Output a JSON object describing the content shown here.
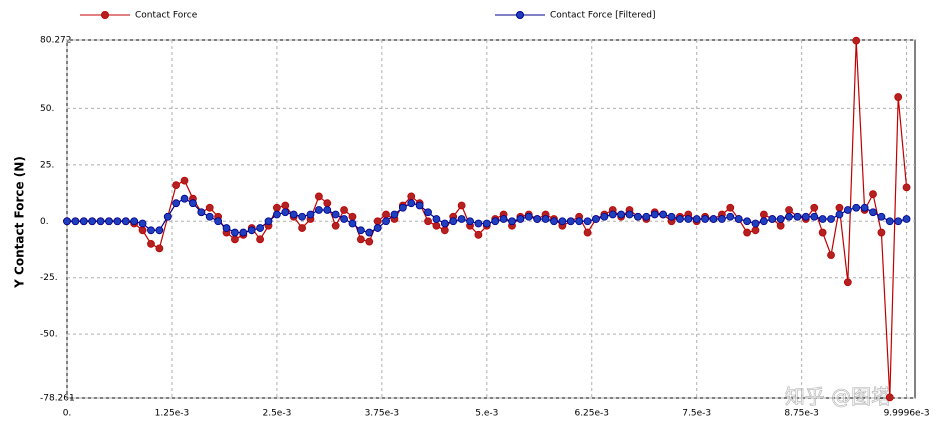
{
  "chart_data": {
    "type": "line",
    "y_label": "Y Contact Force (N)",
    "watermark": "知乎 @图塔",
    "legend": "top",
    "grid": true,
    "x": [
      0,
      0.0001,
      0.0002,
      0.0003,
      0.0004,
      0.0005,
      0.0006,
      0.0007,
      0.0008,
      0.0009,
      0.001,
      0.0011,
      0.0012,
      0.0013,
      0.0014,
      0.0015,
      0.0016,
      0.0017,
      0.0018,
      0.0019,
      0.002,
      0.0021,
      0.0022,
      0.0023,
      0.0024,
      0.0025,
      0.0026,
      0.0027,
      0.0028,
      0.0029,
      0.003,
      0.0031,
      0.0032,
      0.0033,
      0.0034,
      0.0035,
      0.0036,
      0.0037,
      0.0038,
      0.0039,
      0.004,
      0.0041,
      0.0042,
      0.0043,
      0.0044,
      0.0045,
      0.0046,
      0.0047,
      0.0048,
      0.0049,
      0.005,
      0.0051,
      0.0052,
      0.0053,
      0.0054,
      0.0055,
      0.0056,
      0.0057,
      0.0058,
      0.0059,
      0.006,
      0.0061,
      0.0062,
      0.0063,
      0.0064,
      0.0065,
      0.0066,
      0.0067,
      0.0068,
      0.0069,
      0.007,
      0.0071,
      0.0072,
      0.0073,
      0.0074,
      0.0075,
      0.0076,
      0.0077,
      0.0078,
      0.0079,
      0.008,
      0.0081,
      0.0082,
      0.0083,
      0.0084,
      0.0085,
      0.0086,
      0.0087,
      0.0088,
      0.0089,
      0.009,
      0.0091,
      0.0092,
      0.0093,
      0.0094,
      0.0095,
      0.0096,
      0.0097,
      0.0098,
      0.0099,
      0.0099996
    ],
    "series": [
      {
        "name": "Contact Force",
        "color": "#c00000",
        "marker_fill": "#b22222",
        "values": [
          0,
          0,
          0,
          0,
          0,
          0,
          0,
          0,
          -1,
          -4,
          -10,
          -12,
          2,
          16,
          18,
          10,
          4,
          6,
          2,
          -5,
          -8,
          -6,
          -3,
          -8,
          -2,
          6,
          7,
          2,
          -3,
          1,
          11,
          8,
          -2,
          5,
          2,
          -8,
          -9,
          0,
          3,
          1,
          7,
          11,
          8,
          0,
          -2,
          -4,
          2,
          7,
          -2,
          -6,
          -2,
          1,
          3,
          -2,
          2,
          3,
          1,
          3,
          1,
          -2,
          0,
          2,
          -5,
          1,
          3,
          5,
          2,
          5,
          2,
          1,
          4,
          3,
          0,
          2,
          3,
          0,
          2,
          1,
          3,
          6,
          1,
          -5,
          -4,
          3,
          1,
          -2,
          5,
          2,
          1,
          6,
          -5,
          -15,
          6,
          -27,
          80,
          5,
          12,
          -5,
          -78,
          55,
          15
        ]
      },
      {
        "name": "Contact Force [Filtered]",
        "color": "#00008b",
        "marker_fill": "#1f3fbf",
        "values": [
          0,
          0,
          0,
          0,
          0,
          0,
          0,
          0,
          0,
          -1,
          -4,
          -4,
          2,
          8,
          10,
          8,
          4,
          2,
          0,
          -3,
          -5,
          -5,
          -4,
          -3,
          0,
          3,
          4,
          3,
          2,
          3,
          5,
          5,
          3,
          1,
          -1,
          -4,
          -5,
          -3,
          0,
          3,
          6,
          8,
          7,
          4,
          1,
          -1,
          0,
          1,
          0,
          -1,
          -1,
          0,
          1,
          0,
          1,
          2,
          1,
          1,
          0,
          0,
          0,
          0,
          0,
          1,
          2,
          3,
          3,
          3,
          2,
          2,
          3,
          3,
          2,
          1,
          1,
          1,
          1,
          1,
          1,
          2,
          1,
          0,
          -1,
          0,
          1,
          1,
          2,
          2,
          2,
          2,
          1,
          1,
          3,
          5,
          6,
          6,
          4,
          2,
          0,
          0,
          1
        ]
      }
    ],
    "xlim": [
      0,
      0.0101
    ],
    "ylim": [
      -78.261,
      80.272
    ],
    "xticks": [
      {
        "value": 0,
        "label": "0."
      },
      {
        "value": 0.00125,
        "label": "1.25e-3"
      },
      {
        "value": 0.0025,
        "label": "2.5e-3"
      },
      {
        "value": 0.00375,
        "label": "3.75e-3"
      },
      {
        "value": 0.005,
        "label": "5.e-3"
      },
      {
        "value": 0.00625,
        "label": "6.25e-3"
      },
      {
        "value": 0.0075,
        "label": "7.5e-3"
      },
      {
        "value": 0.00875,
        "label": "8.75e-3"
      },
      {
        "value": 0.0099996,
        "label": "9.9996e-3"
      }
    ],
    "yticks": [
      {
        "value": -78.261,
        "label": "-78.261"
      },
      {
        "value": -50,
        "label": "-50."
      },
      {
        "value": -25,
        "label": "-25."
      },
      {
        "value": 0,
        "label": "0."
      },
      {
        "value": 25,
        "label": "25."
      },
      {
        "value": 50,
        "label": "50."
      },
      {
        "value": 80.272,
        "label": "80.272"
      }
    ]
  }
}
